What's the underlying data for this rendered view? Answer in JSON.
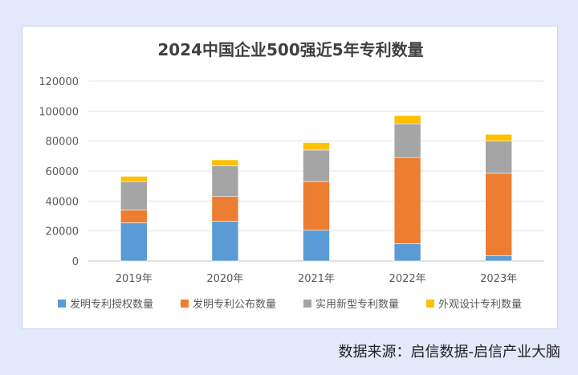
{
  "source": "数据来源：启信数据-启信产业大脑",
  "chart_data": {
    "type": "bar",
    "stacked": true,
    "title": "2024中国企业500强近5年专利数量",
    "xlabel": "",
    "ylabel": "",
    "ylim": [
      0,
      120000
    ],
    "yticks": [
      0,
      20000,
      40000,
      60000,
      80000,
      100000,
      120000
    ],
    "ytick_labels": [
      "0",
      "20000",
      "40000",
      "60000",
      "80000",
      "100000",
      "120000"
    ],
    "grid": true,
    "legend_position": "bottom",
    "categories": [
      "2019年",
      "2020年",
      "2021年",
      "2022年",
      "2023年"
    ],
    "series": [
      {
        "name": "发明专利授权数量",
        "color": "#5b9bd5",
        "values": [
          25500,
          26500,
          20500,
          11500,
          3500
        ]
      },
      {
        "name": "发明专利公布数量",
        "color": "#ed7d31",
        "values": [
          8500,
          16500,
          32500,
          57500,
          55000
        ]
      },
      {
        "name": "实用新型专利数量",
        "color": "#a5a5a5",
        "values": [
          19000,
          20500,
          21000,
          22500,
          21500
        ]
      },
      {
        "name": "外观设计专利数量",
        "color": "#ffc000",
        "values": [
          3500,
          4000,
          5000,
          5500,
          4500
        ]
      }
    ]
  }
}
